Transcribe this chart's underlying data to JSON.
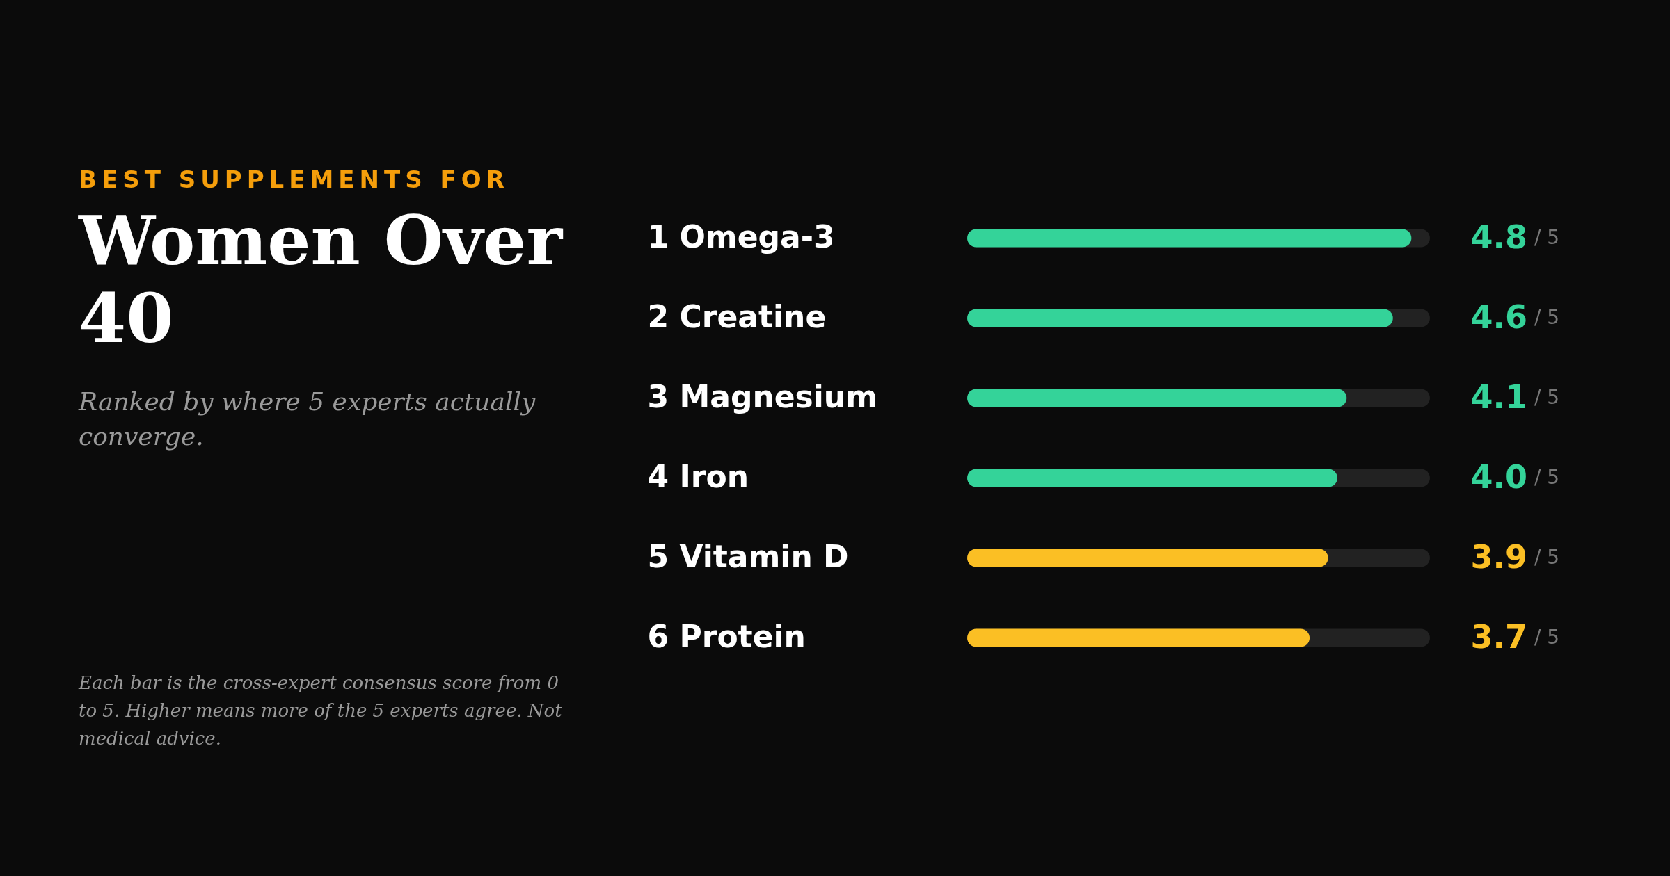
{
  "chart_data": {
    "type": "bar",
    "orientation": "horizontal",
    "title": "Women Over 40",
    "subtitle": "Ranked by where 5 experts actually converge.",
    "annotations": [
      "BEST SUPPLEMENTS FOR",
      "Each bar is the cross-expert consensus score from 0 to 5. Higher means more of the 5 experts agree. Not medical advice.",
      "/ 5",
      "/ 5",
      "/ 5",
      "/ 5",
      "/ 5",
      "/ 5"
    ],
    "categories": [
      "1   Omega-3",
      "2   Creatine",
      "3   Magnesium",
      "4   Iron",
      "5   Vitamin D",
      "6   Protein"
    ],
    "values": [
      4.8,
      4.6,
      4.1,
      4.0,
      3.9,
      3.7
    ],
    "colors": [
      "#34d399",
      "#34d399",
      "#34d399",
      "#34d399",
      "#fbbf24",
      "#fbbf24"
    ],
    "value_labels": [
      "4.8",
      "4.6",
      "4.1",
      "4.0",
      "3.9",
      "3.7"
    ],
    "xlim": [
      0,
      5
    ],
    "tick_labels": false,
    "grid": false
  }
}
